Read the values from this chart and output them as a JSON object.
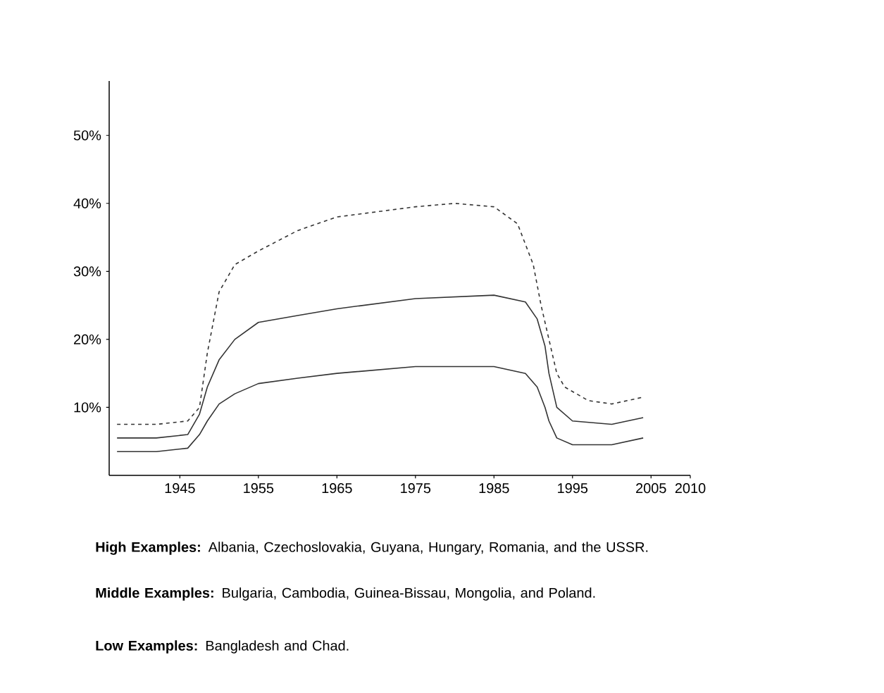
{
  "chart_data": {
    "type": "line",
    "xlim": [
      1936,
      2010
    ],
    "ylim": [
      0,
      58
    ],
    "xticks": [
      1945,
      1955,
      1965,
      1975,
      1985,
      1995,
      2005,
      2010
    ],
    "yticks": [
      {
        "value": 10,
        "label": "10%"
      },
      {
        "value": 20,
        "label": "20%"
      },
      {
        "value": 30,
        "label": "30%"
      },
      {
        "value": 40,
        "label": "40%"
      },
      {
        "value": 50,
        "label": "50%"
      }
    ],
    "grid": false,
    "marker": "none",
    "series": [
      {
        "color": "#333333",
        "line_style": "dashed",
        "x": [
          1937,
          1942,
          1946,
          1947.5,
          1948.5,
          1950,
          1952,
          1955,
          1960,
          1965,
          1975,
          1980,
          1985,
          1988,
          1990,
          1991,
          1992,
          1993,
          1994,
          1997,
          2000,
          2004
        ],
        "values": [
          7.5,
          7.5,
          8,
          10,
          18,
          27,
          31,
          33,
          36,
          38,
          39.5,
          40,
          39.5,
          37,
          31,
          25,
          20,
          15,
          13,
          11,
          10.5,
          11.5
        ]
      },
      {
        "color": "#333333",
        "line_style": "solid",
        "x": [
          1937,
          1942,
          1946,
          1947.5,
          1948.5,
          1950,
          1952,
          1955,
          1960,
          1965,
          1975,
          1985,
          1989,
          1990.5,
          1991.5,
          1992,
          1993,
          1995,
          2000,
          2004
        ],
        "values": [
          5.5,
          5.5,
          6,
          9,
          13,
          17,
          20,
          22.5,
          23.5,
          24.5,
          26,
          26.5,
          25.5,
          23,
          19,
          15,
          10,
          8,
          7.5,
          8.5
        ]
      },
      {
        "color": "#333333",
        "line_style": "solid",
        "x": [
          1937,
          1942,
          1946,
          1947.5,
          1948.5,
          1950,
          1952,
          1955,
          1960,
          1965,
          1975,
          1985,
          1989,
          1990.5,
          1991.5,
          1992,
          1993,
          1995,
          2000,
          2004
        ],
        "values": [
          3.5,
          3.5,
          4,
          6,
          8,
          10.5,
          12,
          13.5,
          14.3,
          15,
          16,
          16,
          15,
          13,
          10,
          8,
          5.5,
          4.5,
          4.5,
          5.5
        ]
      }
    ],
    "annotations": [
      "**High Examples:** Albania, Czechoslovakia, Guyana, Hungary, Romania, and the USSR.",
      "**Middle Examples:** Bulgaria, Cambodia, Guinea-Bissau, Mongolia, and Poland.",
      "**Low Examples:** Bangladesh and Chad."
    ]
  }
}
